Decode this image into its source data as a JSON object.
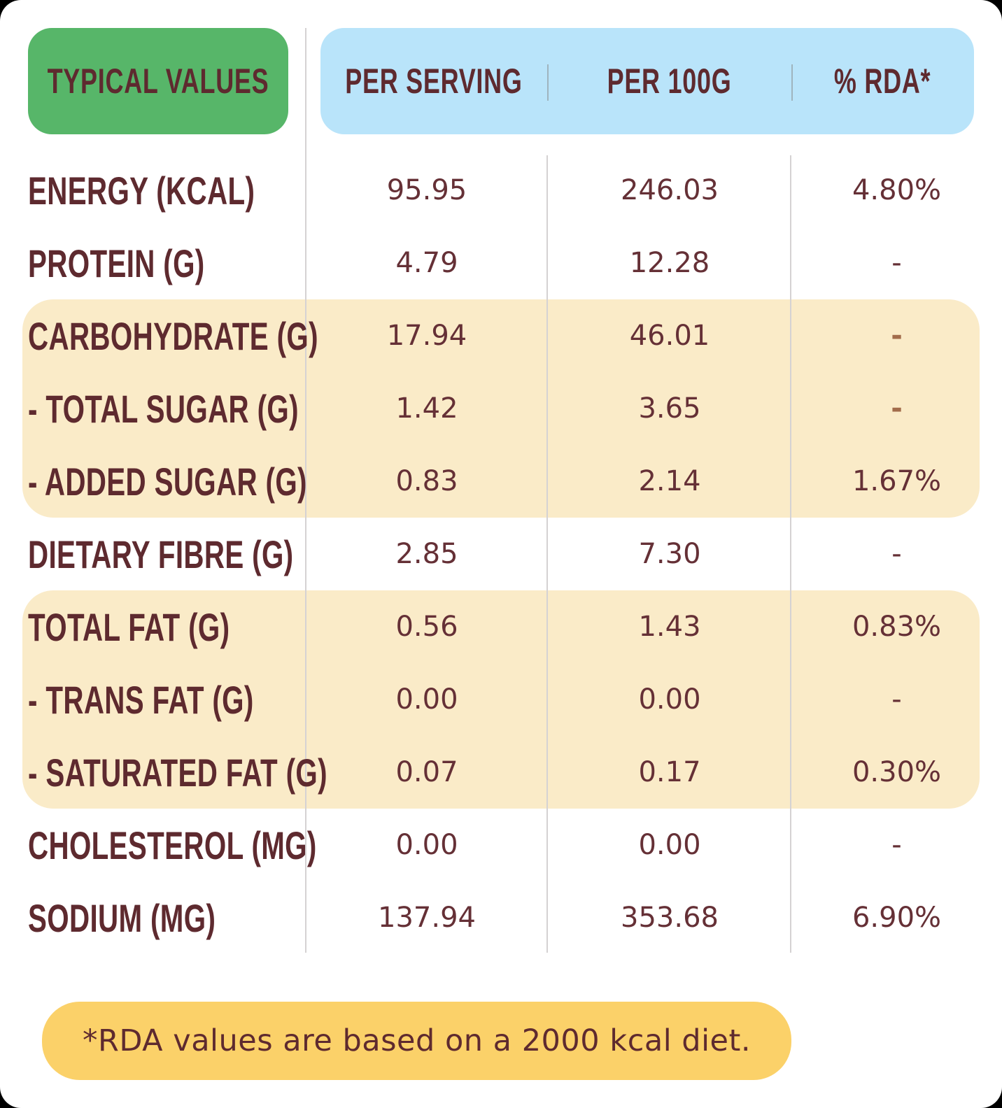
{
  "panel": {
    "header": {
      "typical_values": "TYPICAL VALUES",
      "columns": [
        "PER SERVING",
        "PER 100G",
        "% RDA*"
      ]
    },
    "rows": [
      {
        "label": "ENERGY (KCAL)",
        "per_serving": "95.95",
        "per_100g": "246.03",
        "rda": "4.80%"
      },
      {
        "label": "PROTEIN (G)",
        "per_serving": "4.79",
        "per_100g": "12.28",
        "rda": "-"
      },
      {
        "label": "CARBOHYDRATE (G)",
        "per_serving": "17.94",
        "per_100g": "46.01",
        "rda": "-"
      },
      {
        "label": "- TOTAL SUGAR (G)",
        "per_serving": "1.42",
        "per_100g": "3.65",
        "rda": "-"
      },
      {
        "label": "- ADDED SUGAR (G)",
        "per_serving": "0.83",
        "per_100g": "2.14",
        "rda": "1.67%"
      },
      {
        "label": "DIETARY FIBRE (G)",
        "per_serving": "2.85",
        "per_100g": "7.30",
        "rda": "-"
      },
      {
        "label": "TOTAL FAT (G)",
        "per_serving": "0.56",
        "per_100g": "1.43",
        "rda": "0.83%"
      },
      {
        "label": "- TRANS FAT (G)",
        "per_serving": "0.00",
        "per_100g": "0.00",
        "rda": "-"
      },
      {
        "label": "- SATURATED FAT (G)",
        "per_serving": "0.07",
        "per_100g": "0.17",
        "rda": "0.30%"
      },
      {
        "label": "CHOLESTEROL (MG)",
        "per_serving": "0.00",
        "per_100g": "0.00",
        "rda": "-"
      },
      {
        "label": "SODIUM (MG)",
        "per_serving": "137.94",
        "per_100g": "353.68",
        "rda": "6.90%"
      }
    ],
    "footnote": "*RDA values are based on a 2000 kcal diet.",
    "colors": {
      "header_green": "#57B669",
      "header_blue": "#B9E4FA",
      "row_highlight_cream": "#FAEBC8",
      "footnote_yellow": "#FBD169",
      "text_maroon": "#5E2A2F",
      "muted_dash_brown": "#A26C4B"
    }
  }
}
